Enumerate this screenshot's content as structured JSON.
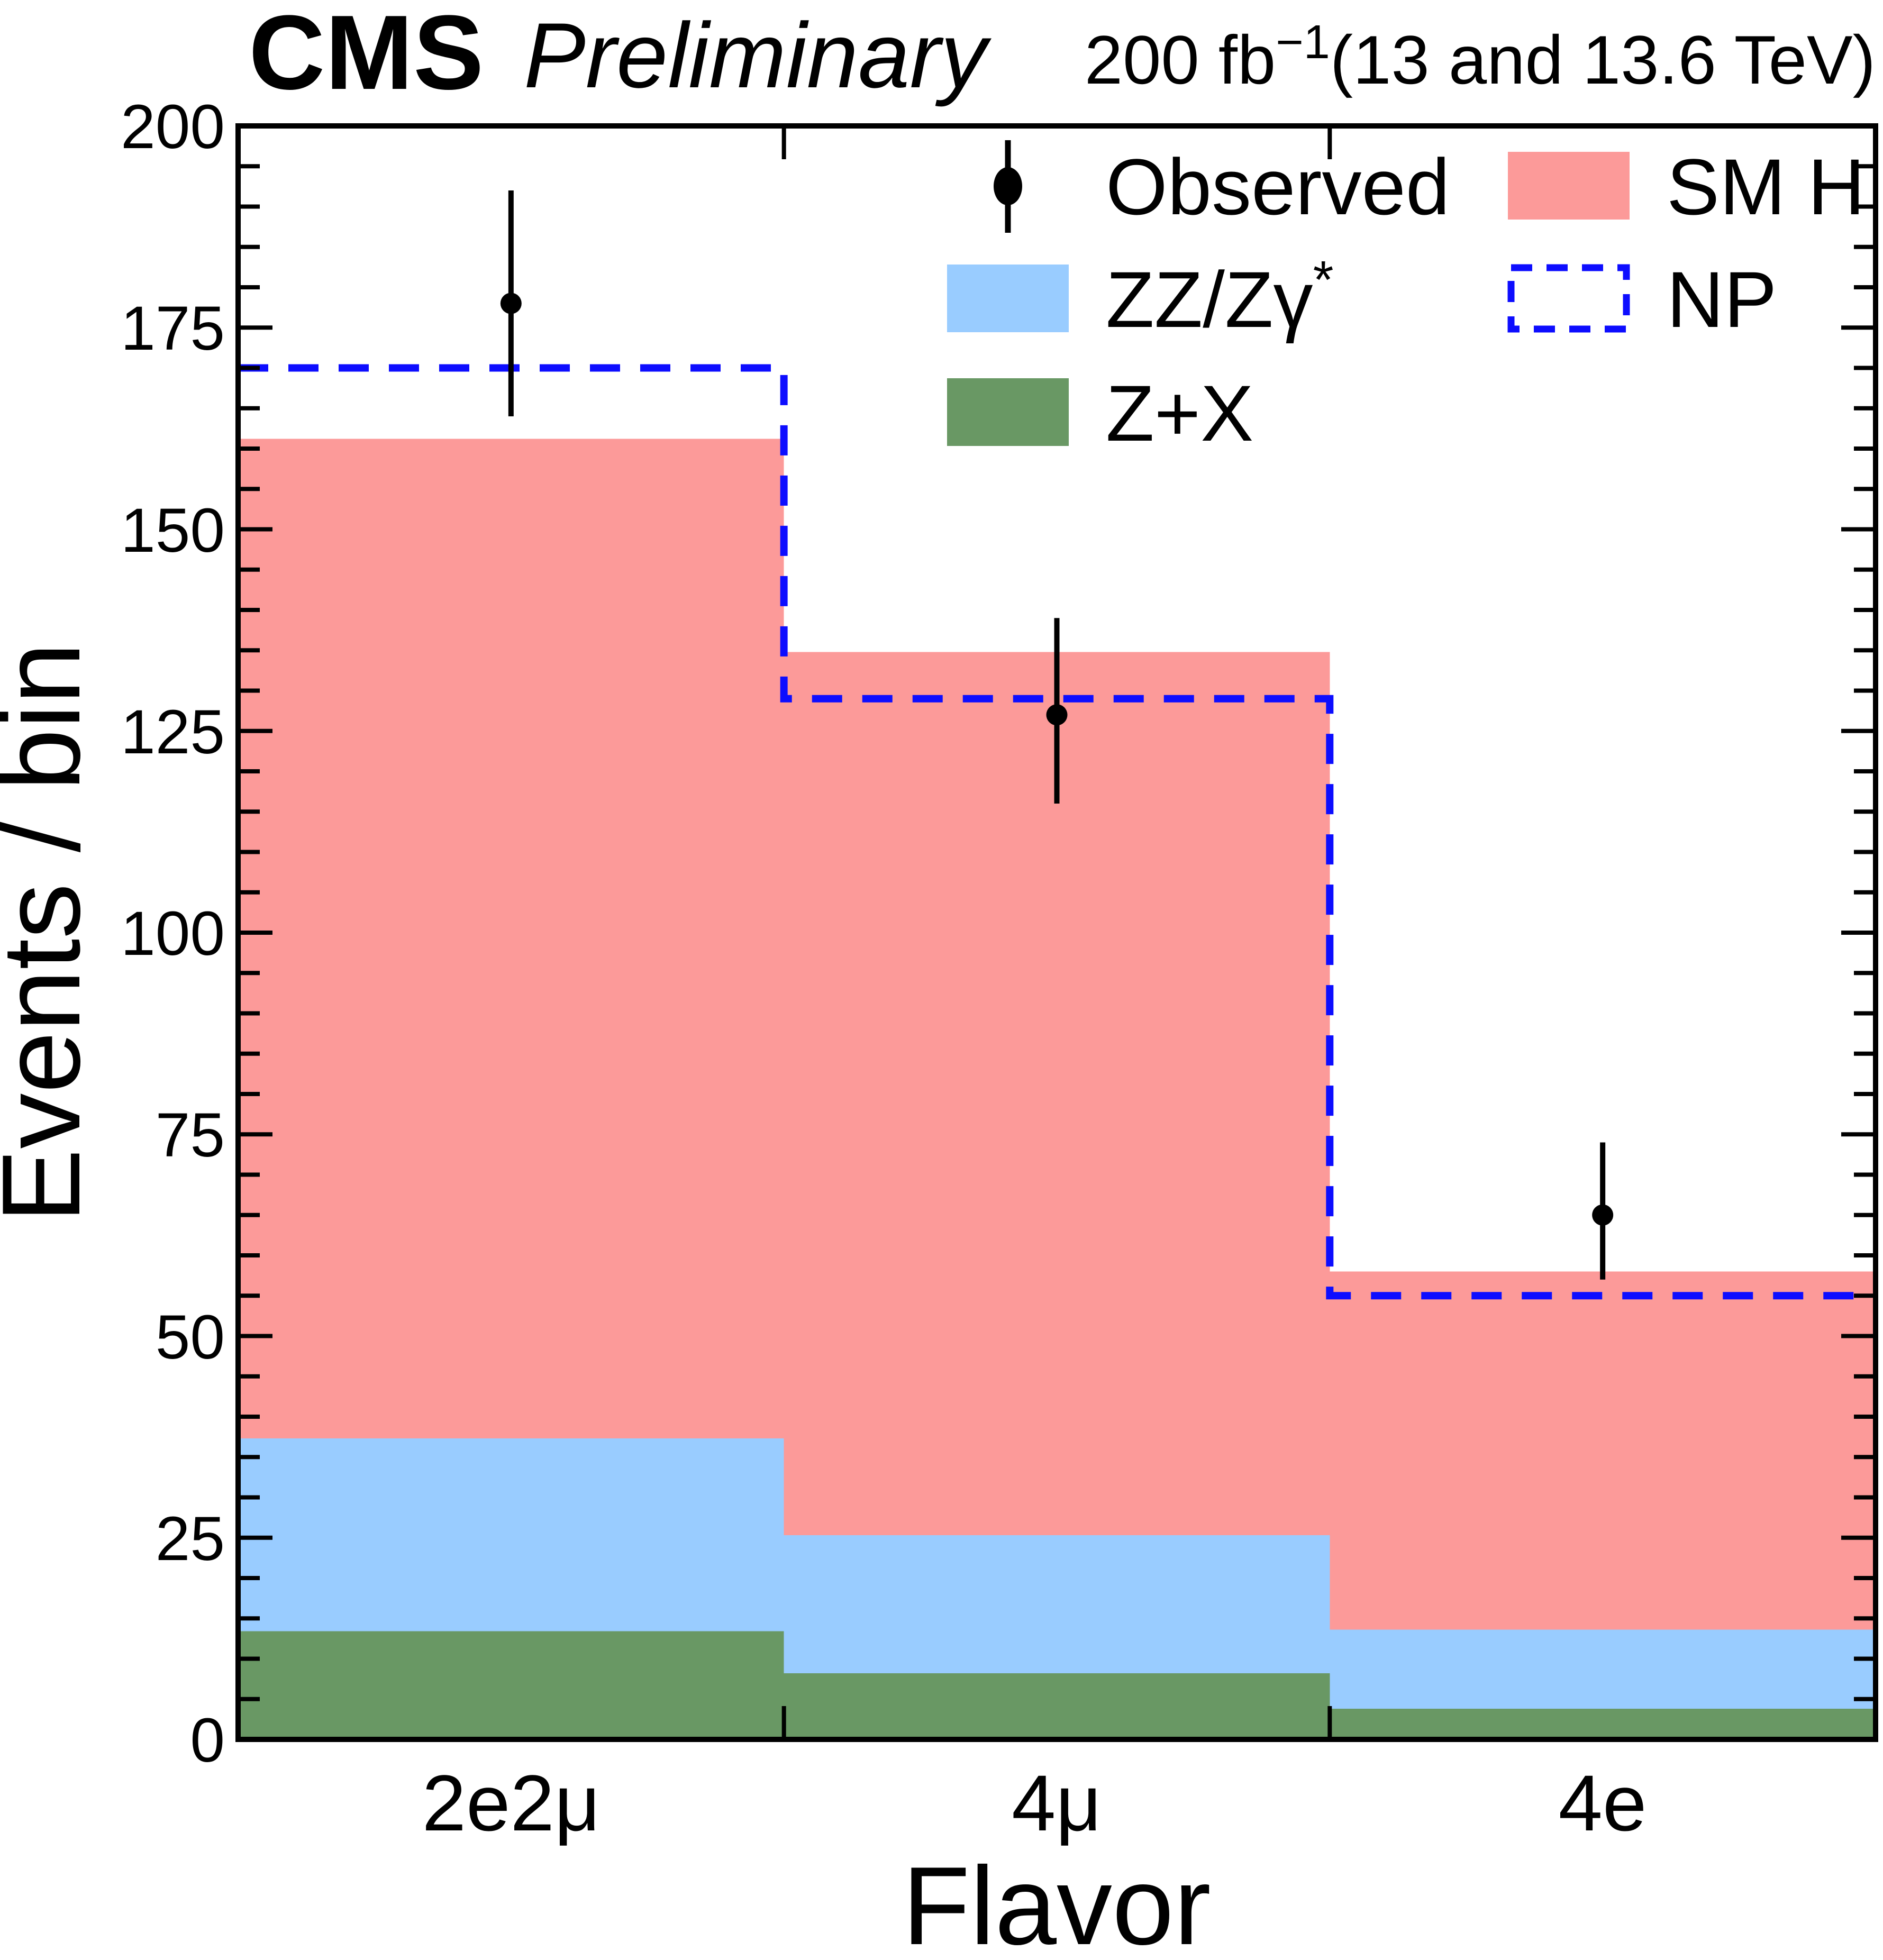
{
  "header": {
    "cms": "CMS",
    "preliminary": "Preliminary",
    "lumi_prefix": "200 fb",
    "lumi_sup": "−1",
    "lumi_suffix": "(13 and 13.6 TeV)"
  },
  "axes": {
    "y_title": "Events / bin",
    "x_title": "Flavor",
    "y_min": 0,
    "y_max": 200,
    "y_major_step": 25,
    "y_minor_step": 5,
    "y_tick_labels": [
      "0",
      "25",
      "50",
      "75",
      "100",
      "125",
      "150",
      "175",
      "200"
    ]
  },
  "legend": {
    "observed": "Observed",
    "zz_main": "ZZ/Zγ",
    "zz_sup": "*",
    "zx": "Z+X",
    "smh": "SM H",
    "np": "NP"
  },
  "colors": {
    "smh": "#FC9A99",
    "zz": "#99CCFF",
    "zx": "#699864",
    "np": "#0D0DFF",
    "observed": "#000000",
    "frame": "#000000"
  },
  "chart_data": {
    "type": "bar",
    "stacked": true,
    "title": "",
    "xlabel": "Flavor",
    "ylabel": "Events / bin",
    "ylim": [
      0,
      200
    ],
    "grid": false,
    "legend_position": "top-inside",
    "categories": [
      "2e2μ",
      "4μ",
      "4e"
    ],
    "series": [
      {
        "name": "Z+X",
        "color": "#699864",
        "values": [
          13.4,
          8.2,
          3.8
        ]
      },
      {
        "name": "ZZ/Zγ*",
        "color": "#99CCFF",
        "values": [
          23.9,
          17.1,
          9.8
        ]
      },
      {
        "name": "SM H",
        "color": "#FC9A99",
        "values": [
          123.9,
          109.5,
          44.4
        ]
      }
    ],
    "stack_totals": [
      161.2,
      134.8,
      58.0
    ],
    "np_line": {
      "name": "NP",
      "color": "#0D0DFF",
      "style": "dashed",
      "values": [
        170,
        129,
        55
      ]
    },
    "observed": {
      "name": "Observed",
      "values": [
        178,
        127,
        65
      ],
      "err_up": [
        14,
        12,
        9
      ],
      "err_down": [
        14,
        11,
        8
      ]
    }
  }
}
